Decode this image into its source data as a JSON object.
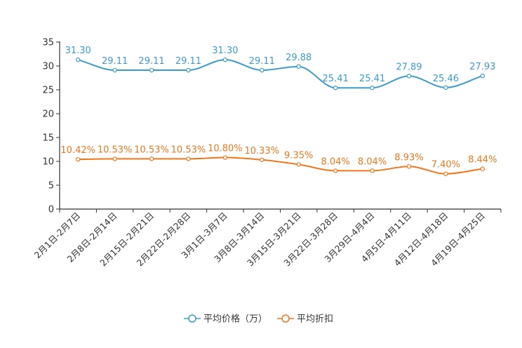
{
  "chart_data": {
    "type": "line",
    "categories": [
      "2月1日-2月7日",
      "2月8日-2月14日",
      "2月15日-2月21日",
      "2月22日-2月28日",
      "3月1日-3月7日",
      "3月8日-3月14日",
      "3月15日-3月21日",
      "3月22日-3月28日",
      "3月29日-4月4日",
      "4月5日-4月11日",
      "4月12日-4月18日",
      "4月19日-4月25日"
    ],
    "ylim": [
      0,
      35
    ],
    "yticks": [
      0,
      5,
      10,
      15,
      20,
      25,
      30,
      35
    ],
    "smooth": true,
    "legend_position": "bottom-center",
    "series": [
      {
        "name": "平均价格（万）",
        "color": "#3a9bce",
        "values": [
          31.3,
          29.11,
          29.11,
          29.11,
          31.3,
          29.11,
          29.88,
          25.41,
          25.41,
          27.89,
          25.46,
          27.93
        ],
        "labels": [
          "31.30",
          "29.11",
          "29.11",
          "29.11",
          "31.30",
          "29.11",
          "29.88",
          "25.41",
          "25.41",
          "27.89",
          "25.46",
          "27.93"
        ]
      },
      {
        "name": "平均折扣",
        "color": "#f0761c",
        "values": [
          10.42,
          10.53,
          10.53,
          10.53,
          10.8,
          10.33,
          9.35,
          8.04,
          8.04,
          8.93,
          7.4,
          8.44
        ],
        "labels": [
          "10.42%",
          "10.53%",
          "10.53%",
          "10.53%",
          "10.80%",
          "10.33%",
          "9.35%",
          "8.04%",
          "8.04%",
          "8.93%",
          "7.40%",
          "8.44%"
        ]
      }
    ]
  }
}
